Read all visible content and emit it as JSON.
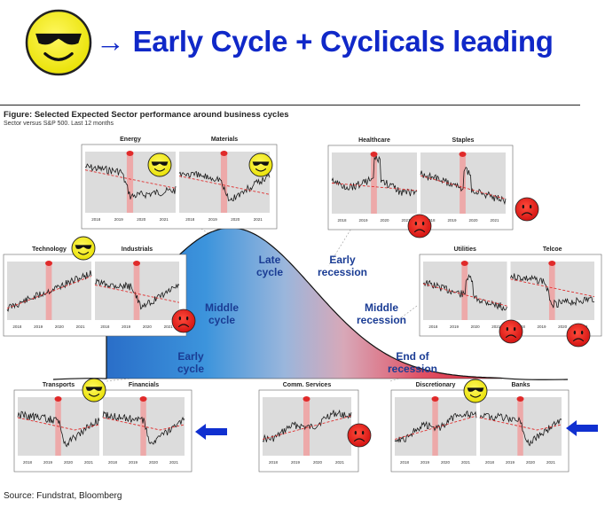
{
  "headline": {
    "arrow": "→",
    "text": "Early Cycle + Cyclicals leading",
    "icon": "cool-smiley-icon"
  },
  "figure": {
    "title": "Figure: Selected Expected Sector performance around business cycles",
    "subtitle": "Sector versus S&P 500. Last 12 months",
    "source": "Source: Fundstrat, Bloomberg"
  },
  "colors": {
    "headline": "#1028c8",
    "late_cycle_blue": "#6ea0d8",
    "recession_red": "#e04050",
    "chart_bg": "#dcdcdc",
    "series_line": "#1a1a1a",
    "trend_line": "#e03030",
    "highlight_band": "#f0a0a0",
    "arrow": "#1030d0",
    "smiley_yellow": "#f5f000",
    "frown_red": "#e02020"
  },
  "chart_data": {
    "type": "line",
    "title": "Figure: Selected Expected Sector performance around business cycles",
    "subtitle": "Sector versus S&P 500. Last 12 months",
    "x_ticks": [
      "2018",
      "2019",
      "2020",
      "2021"
    ],
    "cycle_phases": [
      {
        "label_line1": "Early",
        "label_line2": "cycle"
      },
      {
        "label_line1": "Middle",
        "label_line2": "cycle"
      },
      {
        "label_line1": "Late",
        "label_line2": "cycle"
      },
      {
        "label_line1": "Early",
        "label_line2": "recession"
      },
      {
        "label_line1": "Middle",
        "label_line2": "recession"
      },
      {
        "label_line1": "End of",
        "label_line2": "recession"
      }
    ],
    "sectors": [
      {
        "name": "Energy",
        "mood": "smile",
        "shape": "down"
      },
      {
        "name": "Materials",
        "mood": "smile",
        "shape": "dip"
      },
      {
        "name": "Healthcare",
        "mood": "frown",
        "shape": "spike"
      },
      {
        "name": "Staples",
        "mood": "frown",
        "shape": "spikedown"
      },
      {
        "name": "Technology",
        "mood": "smile",
        "shape": "up"
      },
      {
        "name": "Industrials",
        "mood": "frown",
        "shape": "dip"
      },
      {
        "name": "Utilities",
        "mood": "frown",
        "shape": "spikedown"
      },
      {
        "name": "Telcoe",
        "mood": "frown",
        "shape": "down"
      },
      {
        "name": "Transports",
        "mood": "smile",
        "shape": "vrecover"
      },
      {
        "name": "Financials",
        "mood": "none",
        "shape": "vrecover",
        "arrow": true
      },
      {
        "name": "Comm. Services",
        "mood": "frown",
        "shape": "upnoisy"
      },
      {
        "name": "Discretionary",
        "mood": "smile",
        "shape": "upnoisy"
      },
      {
        "name": "Banks",
        "mood": "none",
        "shape": "vrecover",
        "arrow": true
      }
    ]
  }
}
